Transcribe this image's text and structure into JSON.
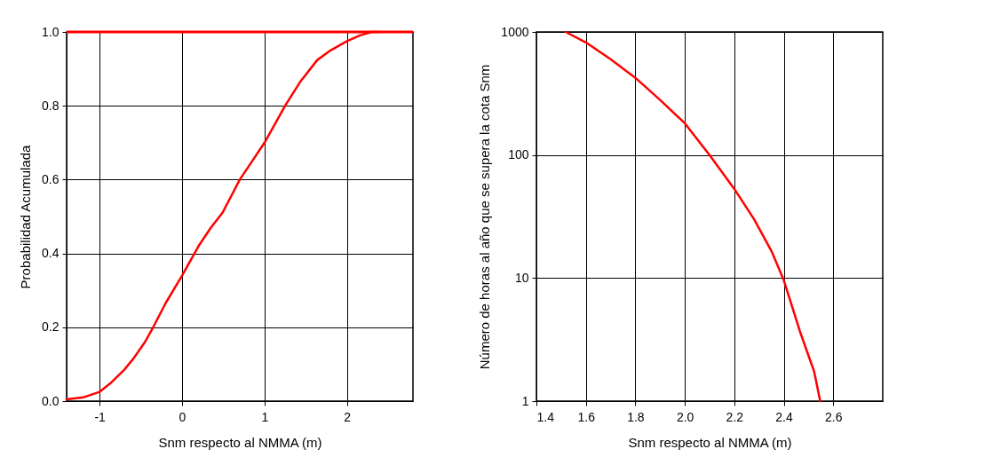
{
  "chart_data": [
    {
      "type": "line",
      "xlabel": "Snm respecto al NMMA (m)",
      "ylabel": "Probabilidad Acumulada",
      "xlim": [
        -1.4,
        2.8
      ],
      "ylim": [
        0,
        1
      ],
      "xticks": [
        -1,
        0,
        1,
        2
      ],
      "yticks": [
        {
          "value": 0,
          "label": "0.0"
        },
        {
          "value": 0.2,
          "label": "0.2"
        },
        {
          "value": 0.4,
          "label": "0.4"
        },
        {
          "value": 0.6,
          "label": "0.6"
        },
        {
          "value": 0.8,
          "label": "0.8"
        },
        {
          "value": 1,
          "label": "1.0"
        }
      ],
      "grid": true,
      "line_style": "solid",
      "marker": "none",
      "ref_lines": [
        {
          "axis": "y",
          "value": 1,
          "color": "#ff0000"
        }
      ],
      "series": [
        {
          "color": "#ff0000",
          "x": [
            -1.4,
            -1.2,
            -1.0,
            -0.86,
            -0.7,
            -0.59,
            -0.45,
            -0.35,
            -0.2,
            0.0,
            0.2,
            0.35,
            0.49,
            0.7,
            0.85,
            1.0,
            1.25,
            1.43,
            1.64,
            1.8,
            2.0,
            2.15,
            2.3,
            2.4
          ],
          "values": [
            0.005,
            0.01,
            0.025,
            0.05,
            0.085,
            0.115,
            0.16,
            0.2,
            0.265,
            0.34,
            0.42,
            0.47,
            0.51,
            0.6,
            0.65,
            0.7,
            0.8,
            0.864,
            0.924,
            0.95,
            0.975,
            0.99,
            1.0,
            1.0
          ]
        }
      ]
    },
    {
      "type": "line",
      "xlabel": "Snm respecto al NMMA (m)",
      "ylabel": "Número de horas al año que se supera la cota Snm",
      "xlim": [
        1.4,
        2.8
      ],
      "ylim": [
        1,
        1000
      ],
      "xticks": [
        1.4,
        1.6,
        1.8,
        {
          "value": 2,
          "label": "2.0"
        },
        2.2,
        2.4,
        2.6
      ],
      "yticks": [
        1,
        10,
        100,
        1000
      ],
      "log": "y",
      "grid": true,
      "line_style": "solid",
      "marker": "none",
      "series": [
        {
          "color": "#ff0000",
          "x": [
            1.518,
            1.6,
            1.7,
            1.8,
            1.9,
            2.0,
            2.1,
            2.2,
            2.28,
            2.35,
            2.4,
            2.465,
            2.523,
            2.547
          ],
          "values": [
            1000,
            822,
            600,
            424,
            280,
            181,
            100,
            53,
            30,
            16.6,
            9.6,
            3.7,
            1.73,
            1
          ]
        }
      ]
    }
  ]
}
